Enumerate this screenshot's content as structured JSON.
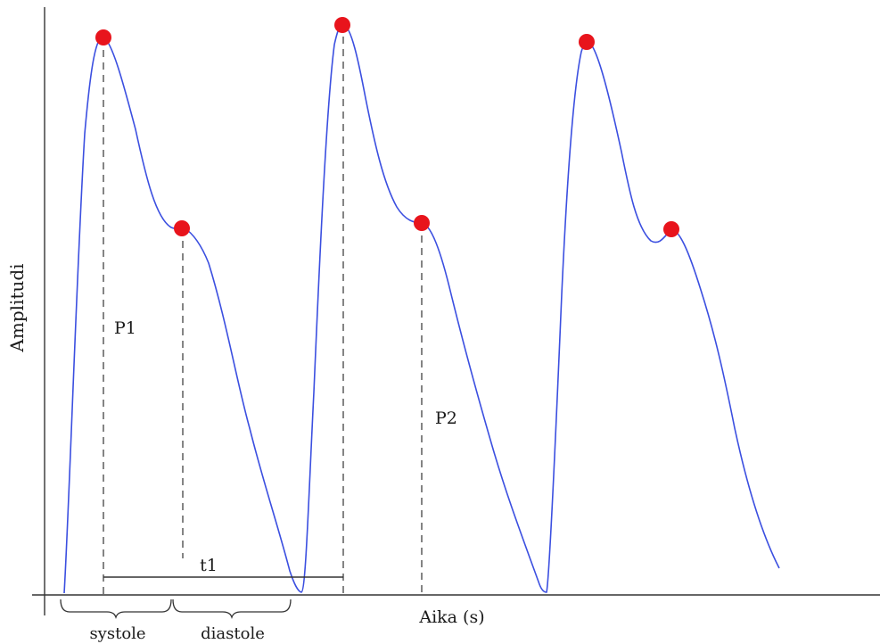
{
  "labels": {
    "ylabel": "Amplitudi",
    "xlabel": "Aika (s)",
    "p1": "P1",
    "p2": "P2",
    "t1": "t1",
    "systole": "systole",
    "diastole": "diastole"
  },
  "colors": {
    "waveform": "#3b4fe0",
    "marker": "#e8141c",
    "axis": "#333333",
    "guide": "#333333"
  }
}
